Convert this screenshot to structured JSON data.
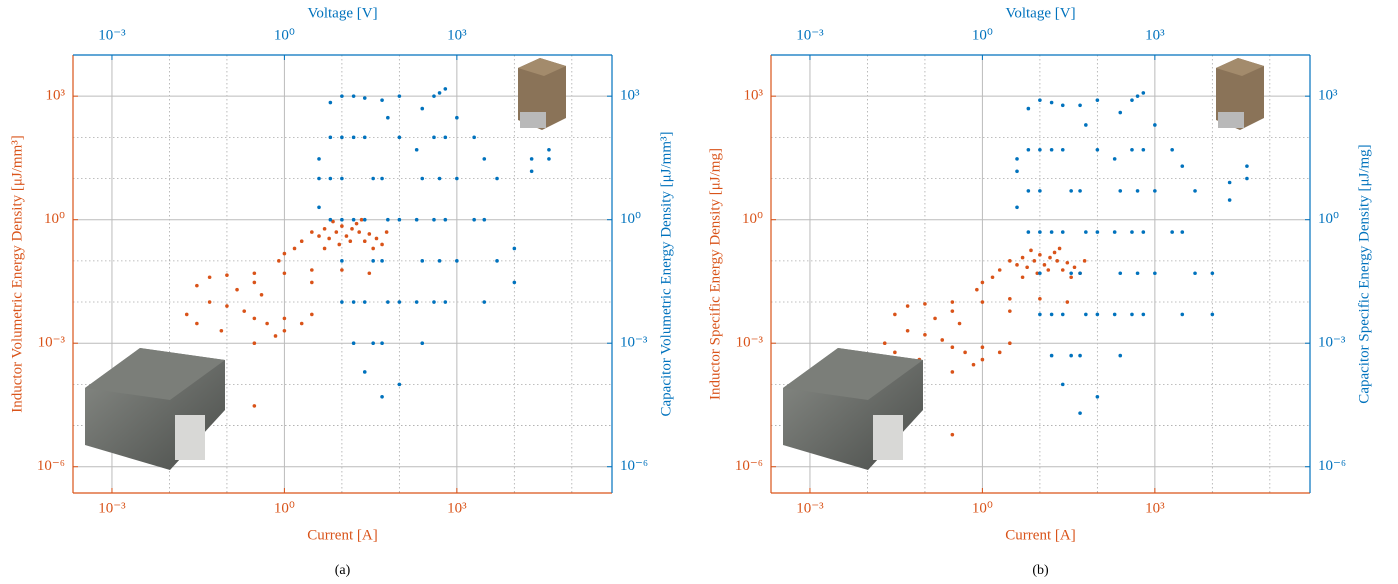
{
  "chart_data": [
    {
      "type": "scatter",
      "caption": "(a)",
      "xlabel": "Current [A]",
      "x2label": "Voltage [V]",
      "ylabel": "Inductor Volumetric Energy Density [μJ/mm³]",
      "y2label": "Capacitor Volumetric Energy Density [μJ/mm³]",
      "xscale": "log",
      "yscale": "log",
      "grid": true,
      "xlim": [
        0.00021,
        500000
      ],
      "x2lim": [
        0.00021,
        500000
      ],
      "ylim": [
        2.3e-07,
        10000
      ],
      "y2lim": [
        2.3e-07,
        10000
      ],
      "xticks": [
        {
          "value": 0.001,
          "label": "10⁻³"
        },
        {
          "value": 1,
          "label": "10⁰"
        },
        {
          "value": 1000,
          "label": "10³"
        }
      ],
      "x2ticks": [
        {
          "value": 0.001,
          "label": "10⁻³"
        },
        {
          "value": 1,
          "label": "10⁰"
        },
        {
          "value": 1000,
          "label": "10³"
        }
      ],
      "yticks": [
        {
          "value": 1e-06,
          "label": "10⁻⁶"
        },
        {
          "value": 0.001,
          "label": "10⁻³"
        },
        {
          "value": 1,
          "label": "10⁰"
        },
        {
          "value": 1000,
          "label": "10³"
        }
      ],
      "y2ticks": [
        {
          "value": 1e-06,
          "label": "10⁻⁶"
        },
        {
          "value": 0.001,
          "label": "10⁻³"
        },
        {
          "value": 1,
          "label": "10⁰"
        },
        {
          "value": 1000,
          "label": "10³"
        }
      ],
      "xminor": [
        0.01,
        0.1,
        10,
        100,
        10000,
        100000
      ],
      "yminor": [
        1e-05,
        0.0001,
        0.01,
        0.1,
        10,
        100
      ],
      "series": [
        {
          "color": "#d95319",
          "axis": "y",
          "x": [
            2,
            3,
            4,
            5,
            6,
            8,
            10,
            12,
            15,
            20,
            25,
            30,
            40,
            50,
            7,
            9,
            14,
            18,
            1.5,
            1,
            0.8,
            60,
            35,
            22,
            5,
            0.05,
            0.1,
            0.3,
            1,
            3,
            10,
            30,
            0.03,
            0.3,
            3,
            0.05,
            0.1,
            0.2,
            0.3,
            0.5,
            1,
            0.02,
            0.03,
            0.15,
            0.4,
            1,
            2,
            3,
            0.7,
            0.3,
            0.08,
            0.3
          ],
          "y": [
            0.3,
            0.5,
            0.4,
            0.6,
            0.35,
            0.5,
            0.7,
            0.4,
            0.6,
            0.5,
            0.3,
            0.45,
            0.35,
            0.25,
            0.9,
            0.25,
            0.3,
            0.8,
            0.2,
            0.15,
            0.1,
            0.5,
            0.2,
            1,
            0.2,
            0.04,
            0.045,
            0.05,
            0.05,
            0.06,
            0.06,
            0.05,
            0.025,
            0.03,
            0.03,
            0.01,
            0.008,
            0.006,
            0.004,
            0.003,
            0.002,
            0.005,
            0.003,
            0.02,
            0.015,
            0.004,
            0.003,
            0.005,
            0.0015,
            0.001,
            0.002,
            3e-05
          ]
        },
        {
          "color": "#0072bd",
          "axis": "y2",
          "xaxis": "x2",
          "x": [
            4,
            4,
            4,
            6.3,
            6.3,
            6.3,
            6.3,
            10,
            10,
            10,
            10,
            10,
            10,
            16,
            16,
            16,
            16,
            16,
            25,
            25,
            25,
            25,
            25,
            35,
            35,
            35,
            50,
            50,
            50,
            50,
            50,
            63,
            63,
            63,
            100,
            100,
            100,
            100,
            100,
            200,
            200,
            200,
            250,
            250,
            250,
            250,
            400,
            400,
            400,
            400,
            500,
            500,
            500,
            630,
            630,
            630,
            630,
            1000,
            1000,
            1000,
            2000,
            2000,
            3000,
            3000,
            3000,
            5000,
            5000,
            10000,
            10000,
            20000,
            20000,
            40000,
            40000
          ],
          "y": [
            2,
            10,
            30,
            1,
            10,
            100,
            700,
            0.01,
            0.1,
            1,
            10,
            100,
            1000,
            0.001,
            0.01,
            1,
            100,
            1000,
            0.0002,
            0.01,
            1,
            100,
            900,
            0.001,
            0.1,
            10,
            5e-05,
            0.001,
            0.1,
            10,
            800,
            0.01,
            1,
            300,
            0.0001,
            0.01,
            1,
            100,
            1000,
            0.01,
            1,
            50,
            0.001,
            0.1,
            10,
            500,
            0.01,
            1,
            100,
            1000,
            0.1,
            10,
            1200,
            0.01,
            1,
            100,
            1500,
            0.1,
            10,
            300,
            1,
            100,
            0.01,
            1,
            30,
            0.1,
            10,
            0.03,
            0.2,
            15,
            30,
            30,
            50
          ]
        }
      ]
    },
    {
      "type": "scatter",
      "caption": "(b)",
      "xlabel": "Current [A]",
      "x2label": "Voltage [V]",
      "ylabel": "Inductor Specific Energy Density [μJ/mg]",
      "y2label": "Capacitor Specific Energy Density [μJ/mg]",
      "xscale": "log",
      "yscale": "log",
      "grid": true,
      "xlim": [
        0.00021,
        500000
      ],
      "x2lim": [
        0.00021,
        500000
      ],
      "ylim": [
        2.3e-07,
        10000
      ],
      "y2lim": [
        2.3e-07,
        10000
      ],
      "xticks": [
        {
          "value": 0.001,
          "label": "10⁻³"
        },
        {
          "value": 1,
          "label": "10⁰"
        },
        {
          "value": 1000,
          "label": "10³"
        }
      ],
      "x2ticks": [
        {
          "value": 0.001,
          "label": "10⁻³"
        },
        {
          "value": 1,
          "label": "10⁰"
        },
        {
          "value": 1000,
          "label": "10³"
        }
      ],
      "yticks": [
        {
          "value": 1e-06,
          "label": "10⁻⁶"
        },
        {
          "value": 0.001,
          "label": "10⁻³"
        },
        {
          "value": 1,
          "label": "10⁰"
        },
        {
          "value": 1000,
          "label": "10³"
        }
      ],
      "y2ticks": [
        {
          "value": 1e-06,
          "label": "10⁻⁶"
        },
        {
          "value": 0.001,
          "label": "10⁻³"
        },
        {
          "value": 1,
          "label": "10⁰"
        },
        {
          "value": 1000,
          "label": "10³"
        }
      ],
      "xminor": [
        0.01,
        0.1,
        10,
        100,
        10000,
        100000
      ],
      "yminor": [
        1e-05,
        0.0001,
        0.01,
        0.1,
        10,
        100
      ],
      "series": [
        {
          "color": "#d95319",
          "axis": "y",
          "x": [
            2,
            3,
            4,
            5,
            6,
            8,
            10,
            12,
            15,
            20,
            25,
            30,
            40,
            50,
            7,
            9,
            14,
            18,
            1.5,
            1,
            0.8,
            60,
            35,
            22,
            5,
            0.05,
            0.1,
            0.3,
            1,
            3,
            10,
            30,
            0.03,
            0.3,
            3,
            0.05,
            0.1,
            0.2,
            0.3,
            0.5,
            1,
            0.02,
            0.03,
            0.15,
            0.4,
            1,
            2,
            3,
            0.7,
            0.3,
            0.08,
            0.3
          ],
          "y": [
            0.06,
            0.1,
            0.08,
            0.12,
            0.07,
            0.1,
            0.14,
            0.08,
            0.12,
            0.1,
            0.06,
            0.09,
            0.07,
            0.05,
            0.18,
            0.05,
            0.06,
            0.16,
            0.04,
            0.03,
            0.02,
            0.1,
            0.04,
            0.2,
            0.04,
            0.008,
            0.009,
            0.01,
            0.01,
            0.012,
            0.012,
            0.01,
            0.005,
            0.006,
            0.006,
            0.002,
            0.0016,
            0.0012,
            0.0008,
            0.0006,
            0.0004,
            0.001,
            0.0006,
            0.004,
            0.003,
            0.0008,
            0.0006,
            0.001,
            0.0003,
            0.0002,
            0.0004,
            6e-06
          ]
        },
        {
          "color": "#0072bd",
          "axis": "y2",
          "xaxis": "x2",
          "x": [
            4,
            4,
            4,
            6.3,
            6.3,
            6.3,
            6.3,
            10,
            10,
            10,
            10,
            10,
            10,
            16,
            16,
            16,
            16,
            16,
            25,
            25,
            25,
            25,
            25,
            35,
            35,
            35,
            50,
            50,
            50,
            50,
            50,
            63,
            63,
            63,
            100,
            100,
            100,
            100,
            100,
            200,
            200,
            200,
            250,
            250,
            250,
            250,
            400,
            400,
            400,
            400,
            500,
            500,
            500,
            630,
            630,
            630,
            630,
            1000,
            1000,
            1000,
            2000,
            2000,
            3000,
            3000,
            3000,
            5000,
            5000,
            10000,
            10000,
            20000,
            20000,
            40000,
            40000
          ],
          "y": [
            2,
            15,
            30,
            0.5,
            5,
            50,
            500,
            0.005,
            0.05,
            0.5,
            5,
            50,
            800,
            0.0005,
            0.005,
            0.5,
            50,
            700,
            0.0001,
            0.005,
            0.5,
            50,
            600,
            0.0005,
            0.05,
            5,
            2e-05,
            0.0005,
            0.05,
            5,
            600,
            0.005,
            0.5,
            200,
            5e-05,
            0.005,
            0.5,
            50,
            800,
            0.005,
            0.5,
            30,
            0.0005,
            0.05,
            5,
            400,
            0.005,
            0.5,
            50,
            800,
            0.05,
            5,
            1000,
            0.005,
            0.5,
            50,
            1200,
            0.05,
            5,
            200,
            0.5,
            50,
            0.005,
            0.5,
            20,
            0.05,
            5,
            0.005,
            0.05,
            3,
            8,
            10,
            20
          ]
        }
      ]
    }
  ]
}
